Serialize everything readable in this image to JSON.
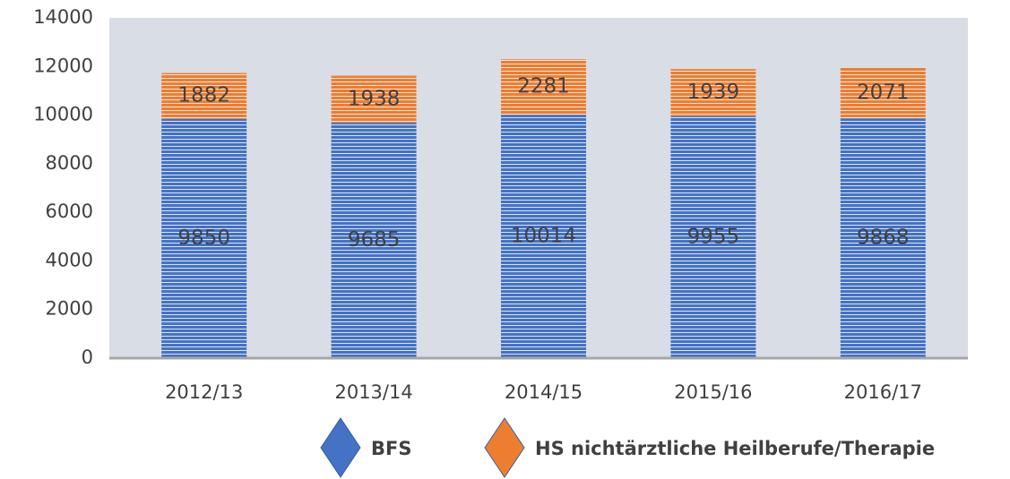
{
  "chart_data": {
    "type": "bar",
    "stacked": true,
    "categories": [
      "2012/13",
      "2013/14",
      "2014/15",
      "2015/16",
      "2016/17"
    ],
    "series": [
      {
        "name": "BFS",
        "color": "#4472c4",
        "values": [
          9850,
          9685,
          10014,
          9955,
          9868
        ]
      },
      {
        "name": "HS nichtärztliche Heilberufe/Therapie",
        "color": "#ed7d31",
        "values": [
          1882,
          1938,
          2281,
          1939,
          2071
        ]
      }
    ],
    "ylim": [
      0,
      14000
    ],
    "yticks": [
      0,
      2000,
      4000,
      6000,
      8000,
      10000,
      12000,
      14000
    ],
    "legend": "bottom"
  }
}
